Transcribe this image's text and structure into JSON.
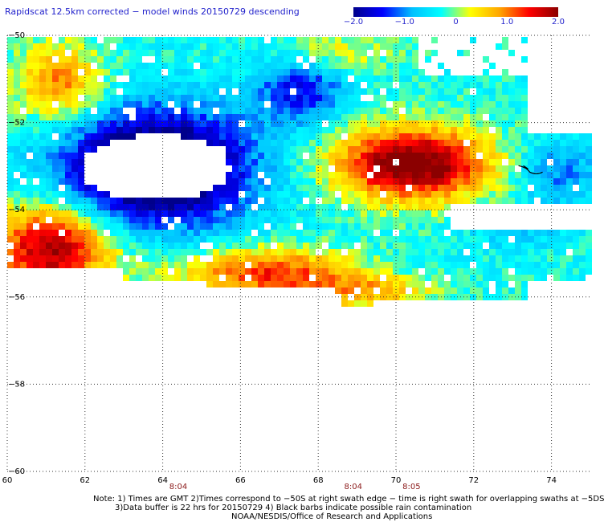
{
  "title": "Rapidscat 12.5km corrected − model winds 20150729 descending",
  "colorbar": {
    "min": -2.0,
    "max": 2.0,
    "ticks": [
      {
        "value": -2.0,
        "label": "−2.0"
      },
      {
        "value": -1.0,
        "label": "−1.0"
      },
      {
        "value": 0,
        "label": "0"
      },
      {
        "value": 1.0,
        "label": "1.0"
      },
      {
        "value": 2.0,
        "label": "2.0"
      }
    ],
    "stops": [
      "#00008b",
      "#0000ff",
      "#00bfff",
      "#00ffff",
      "#ffff00",
      "#ffa500",
      "#ff0000",
      "#8b0000"
    ]
  },
  "map": {
    "lon_range": [
      60,
      75
    ],
    "lat_range": [
      -60,
      -50
    ],
    "lon_ticks": [
      {
        "value": 60,
        "label": "60"
      },
      {
        "value": 62,
        "label": "62"
      },
      {
        "value": 64,
        "label": "64"
      },
      {
        "value": 66,
        "label": "66"
      },
      {
        "value": 68,
        "label": "68"
      },
      {
        "value": 70,
        "label": "70"
      },
      {
        "value": 72,
        "label": "72"
      },
      {
        "value": 74,
        "label": "74"
      }
    ],
    "lat_ticks": [
      {
        "value": -50,
        "label": "−50"
      },
      {
        "value": -52,
        "label": "−52"
      },
      {
        "value": -54,
        "label": "−54"
      },
      {
        "value": -56,
        "label": "−56"
      },
      {
        "value": -58,
        "label": "−58"
      },
      {
        "value": -60,
        "label": "−60"
      }
    ],
    "grid": "dotted",
    "rain_barb_color": "#000000"
  },
  "time_marks": [
    {
      "lon": 64.4,
      "label": "8:04"
    },
    {
      "lon": 68.9,
      "label": "8:04"
    },
    {
      "lon": 70.4,
      "label": "8:05"
    }
  ],
  "notes": {
    "line1": "Note: 1) Times are GMT 2)Times correspond to −50S at right swath edge − time is right swath for overlapping swaths at −5DS",
    "line2": "3)Data buffer is 22 hrs for 20150729 4) Black barbs indicate possible rain contamination",
    "line3": "NOAA/NESDIS/Office of Research and Applications"
  }
}
